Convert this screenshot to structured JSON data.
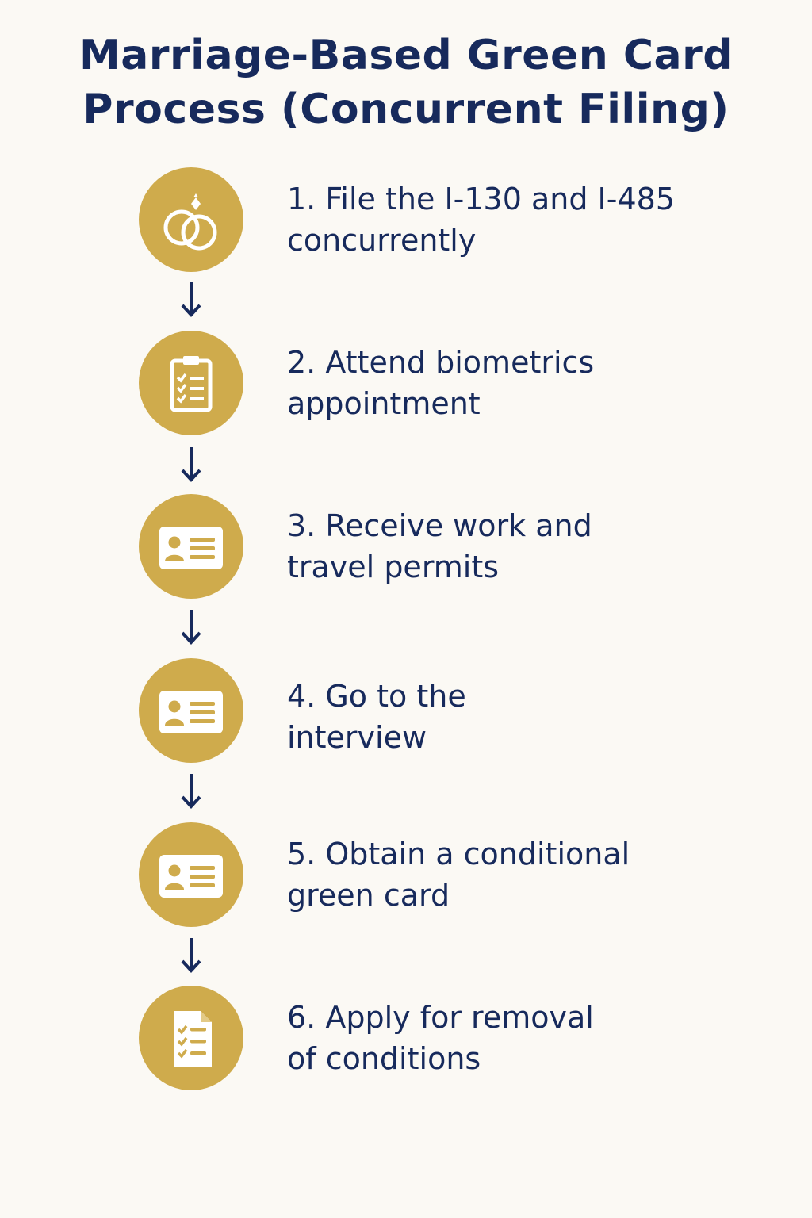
{
  "title": {
    "line1": "Marriage-Based Green Card",
    "line2": "Process (Concurrent Filing)"
  },
  "colors": {
    "background": "#fbf9f4",
    "accent_gold": "#cfab4c",
    "text_navy": "#172a5c"
  },
  "steps": [
    {
      "icon": "wedding-rings-icon",
      "line1": "1. File the I-130 and I-485",
      "line2": "concurrently"
    },
    {
      "icon": "clipboard-checklist-icon",
      "line1": "2. Attend biometrics",
      "line2": "appointment"
    },
    {
      "icon": "id-card-icon",
      "line1": "3. Receive work and",
      "line2": "travel permits"
    },
    {
      "icon": "id-card-icon",
      "line1": "4. Go to the",
      "line2": "interview"
    },
    {
      "icon": "id-card-icon",
      "line1": "5. Obtain a conditional",
      "line2": "green card"
    },
    {
      "icon": "document-checklist-icon",
      "line1": "6. Apply for removal",
      "line2": "of conditions"
    }
  ]
}
